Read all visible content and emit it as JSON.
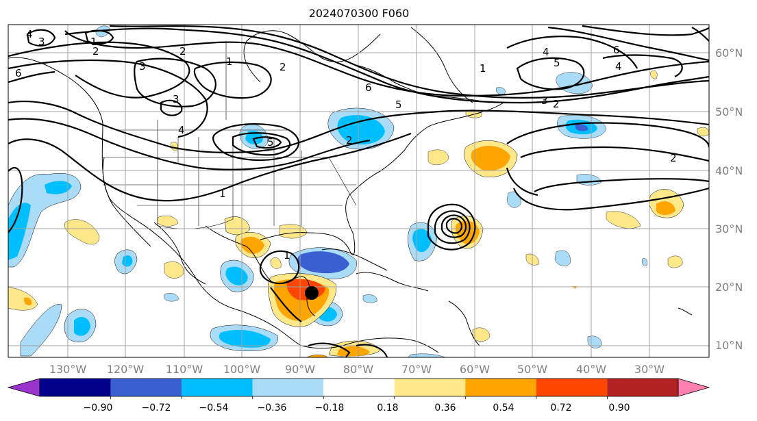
{
  "title": "2024070300 F060",
  "longitude_labels": [
    "130°W",
    "120°W",
    "110°W",
    "100°W",
    "90°W",
    "80°W",
    "70°W",
    "60°W",
    "50°W",
    "40°W",
    "30°W"
  ],
  "latitude_labels": [
    "60°N",
    "50°N",
    "40°N",
    "30°N",
    "20°N",
    "10°N"
  ],
  "colorbar": {
    "tick_labels": [
      "−0.90",
      "−0.72",
      "−0.54",
      "−0.36",
      "−0.18",
      "0.18",
      "0.36",
      "0.54",
      "0.72",
      "0.90"
    ],
    "colors": [
      "#9933cc",
      "#00008b",
      "#3a5fd0",
      "#00bfff",
      "#aadcf8",
      "#ffffff",
      "#ffe88a",
      "#ffa500",
      "#ff4500",
      "#b22222",
      "#ff80b0"
    ]
  },
  "contour_labels": [
    "4",
    "3",
    "1",
    "2",
    "2",
    "3",
    "1",
    "6",
    "2",
    "3",
    "4",
    "5",
    "6",
    "5",
    "3",
    "2",
    "4",
    "5",
    "1",
    "2",
    "6",
    "4",
    "2",
    "1",
    "1"
  ],
  "marker": "storm-position"
}
